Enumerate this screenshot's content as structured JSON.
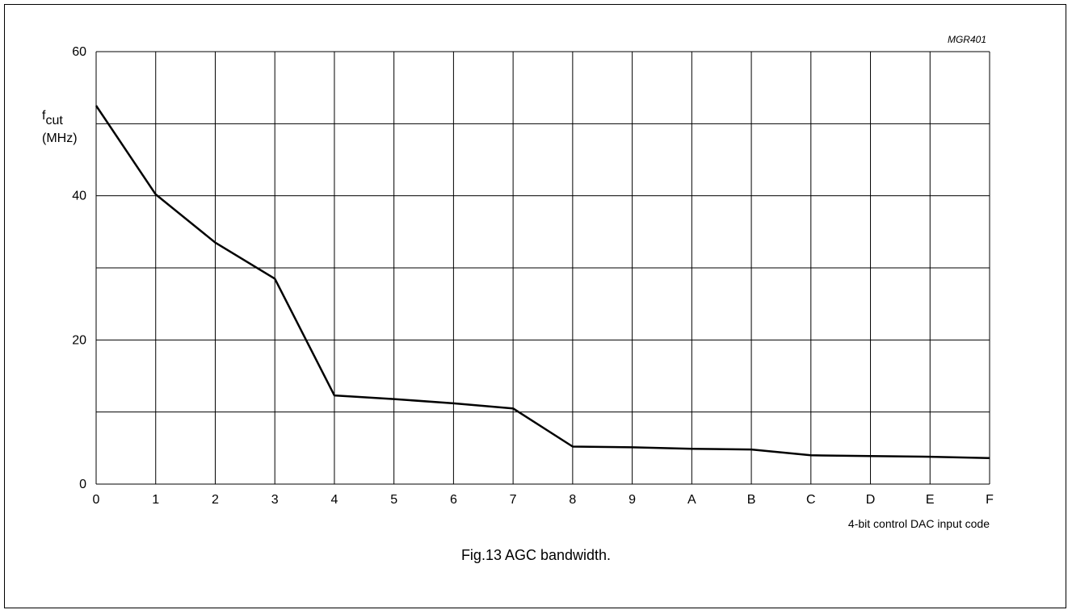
{
  "chart_data": {
    "type": "line",
    "figure_code": "MGR401",
    "caption": "Fig.13  AGC bandwidth.",
    "ylabel_main": "f",
    "ylabel_sub": "cut",
    "yunit": "(MHz)",
    "xlabel": "4-bit control DAC input code",
    "categories": [
      "0",
      "1",
      "2",
      "3",
      "4",
      "5",
      "6",
      "7",
      "8",
      "9",
      "A",
      "B",
      "C",
      "D",
      "E",
      "F"
    ],
    "ylim": [
      0,
      60
    ],
    "y_ticks": [
      0,
      20,
      40,
      60
    ],
    "y_gridlines": [
      0,
      10,
      20,
      30,
      40,
      50,
      60
    ],
    "grid": true,
    "series": [
      {
        "values": [
          52.5,
          40.2,
          33.5,
          28.5,
          12.3,
          11.8,
          11.2,
          10.5,
          5.2,
          5.1,
          4.9,
          4.8,
          4.0,
          3.9,
          3.8,
          3.6
        ]
      }
    ],
    "line_color": "#000000"
  }
}
